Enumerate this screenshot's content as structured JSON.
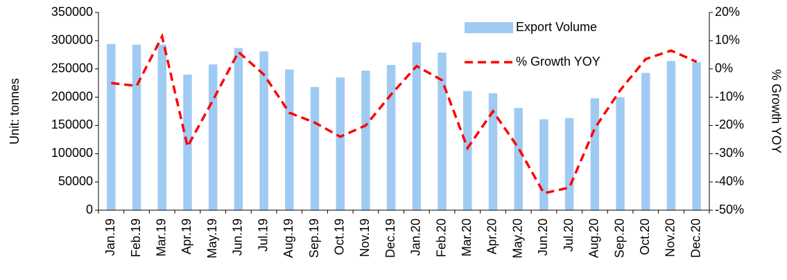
{
  "chart_data": {
    "type": "bar-line",
    "categories": [
      "Jan.19",
      "Feb.19",
      "Mar.19",
      "Apr.19",
      "May.19",
      "Jun.19",
      "Jul.19",
      "Aug.19",
      "Sep.19",
      "Oct.19",
      "Nov.19",
      "Dec.19",
      "Jan.20",
      "Feb.20",
      "Mar.20",
      "Apr.20",
      "May.20",
      "Jun.20",
      "Jul.20",
      "Aug.20",
      "Sep.20",
      "Oct.20",
      "Nov.20",
      "Dec.20"
    ],
    "series": [
      {
        "name": "Export Volume",
        "type": "bar",
        "color": "#9fcbf3",
        "values": [
          294000,
          293000,
          293000,
          240000,
          258000,
          287000,
          281000,
          249000,
          218000,
          235000,
          247000,
          257000,
          297000,
          279000,
          211000,
          207000,
          181000,
          161000,
          163000,
          198000,
          200000,
          243000,
          264000,
          262000
        ]
      },
      {
        "name": "% Growth YOY",
        "type": "line",
        "axis": "y2",
        "color": "#ff0000",
        "values": [
          -5,
          -6,
          11.5,
          -27.5,
          -11,
          6,
          -2,
          -15.5,
          -19,
          -24,
          -20,
          -9,
          1,
          -4,
          -28,
          -15,
          -28,
          -44,
          -42,
          -21,
          -7.5,
          3.5,
          6.5,
          2.5
        ]
      }
    ],
    "ylabel": "Unit: tonnes",
    "y2label": "% Growth YOY",
    "ylim": [
      0,
      350000
    ],
    "yticks": [
      0,
      50000,
      100000,
      150000,
      200000,
      250000,
      300000,
      350000
    ],
    "y2lim": [
      -50,
      20
    ],
    "y2ticks": [
      {
        "value": -50,
        "label": "-50%"
      },
      {
        "value": -40,
        "label": "-40%"
      },
      {
        "value": -30,
        "label": "-30%"
      },
      {
        "value": -20,
        "label": "-20%"
      },
      {
        "value": -10,
        "label": "-10%"
      },
      {
        "value": 0,
        "label": "0%"
      },
      {
        "value": 10,
        "label": "10%"
      },
      {
        "value": 20,
        "label": "20%"
      }
    ],
    "legend": "top-right",
    "grid": false
  }
}
